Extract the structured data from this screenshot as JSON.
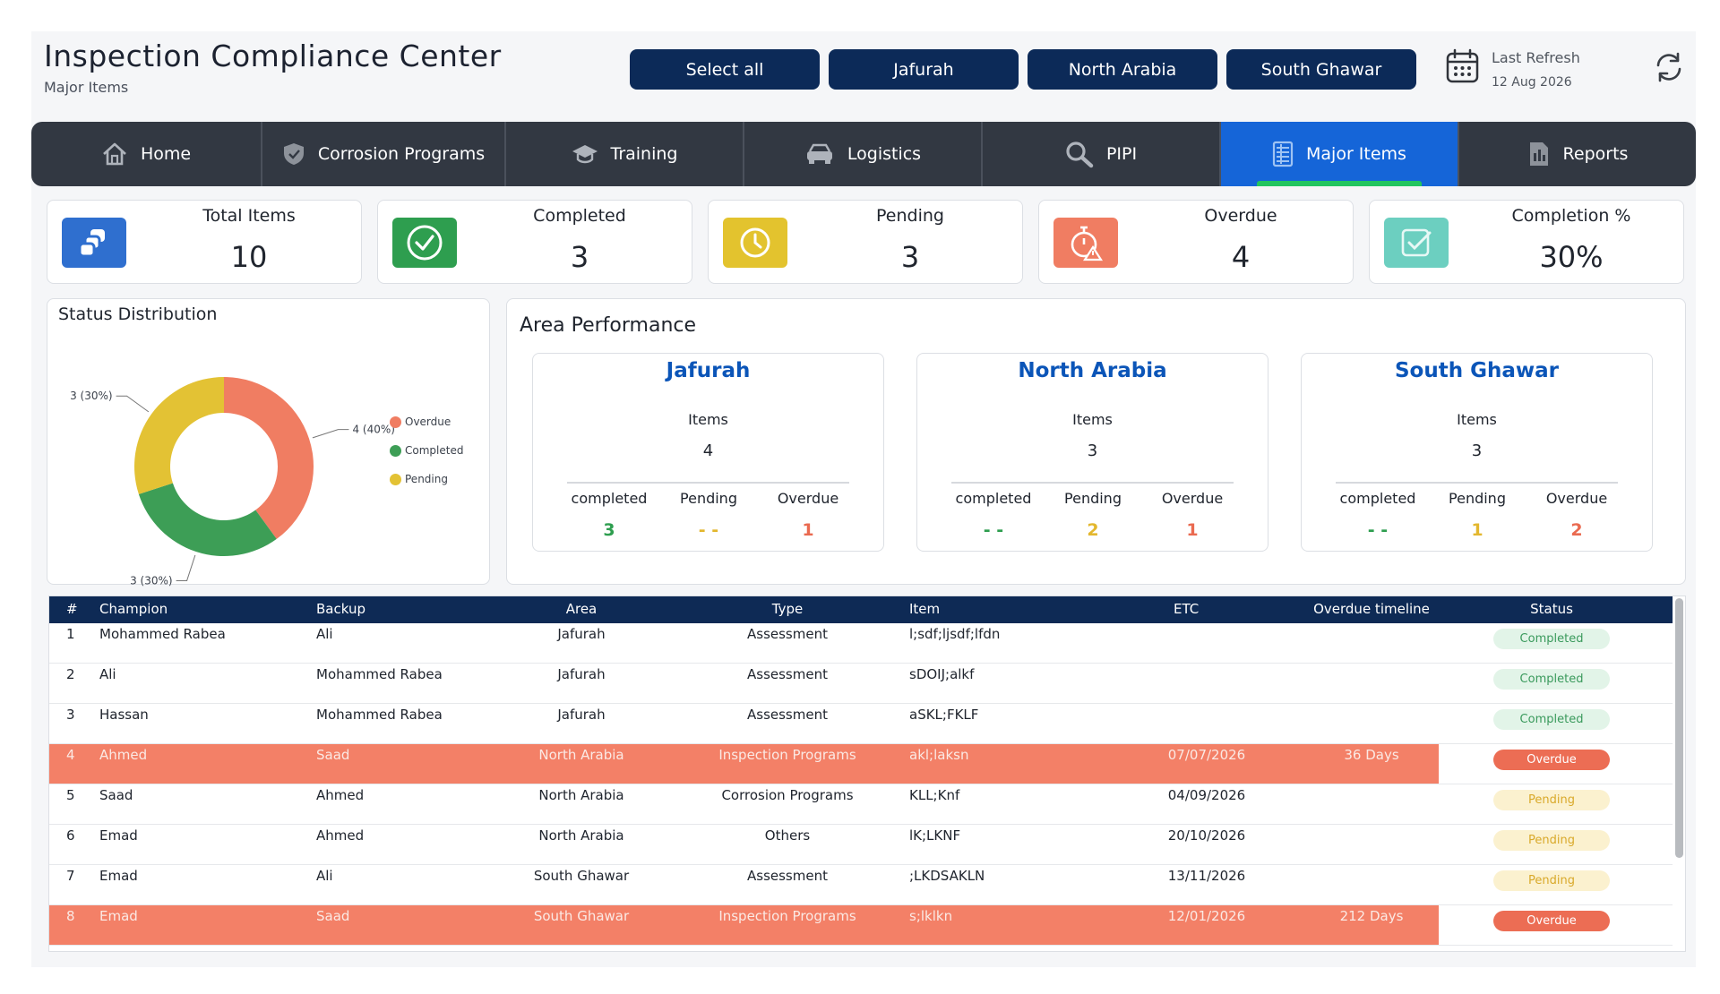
{
  "header": {
    "title": "Inspection Compliance Center",
    "subtitle": "Major Items",
    "filters": [
      "Select all",
      "Jafurah",
      "North Arabia",
      "South Ghawar"
    ],
    "last_refresh_label": "Last Refresh",
    "last_refresh_date": "12 Aug 2026"
  },
  "nav": {
    "tabs": [
      {
        "label": "Home",
        "icon": "home-icon"
      },
      {
        "label": "Corrosion Programs",
        "icon": "shield-icon"
      },
      {
        "label": "Training",
        "icon": "graduation-cap-icon"
      },
      {
        "label": "Logistics",
        "icon": "car-icon"
      },
      {
        "label": "PIPI",
        "icon": "search-icon"
      },
      {
        "label": "Major Items",
        "icon": "list-icon",
        "active": true
      },
      {
        "label": "Reports",
        "icon": "report-icon"
      }
    ]
  },
  "kpis": [
    {
      "label": "Total Items",
      "value": "10",
      "color": "#2f6fcf",
      "icon": "items-icon"
    },
    {
      "label": "Completed",
      "value": "3",
      "color": "#2e9e4f",
      "icon": "check-circle-icon"
    },
    {
      "label": "Pending",
      "value": "3",
      "color": "#e3c32e",
      "icon": "clock-icon"
    },
    {
      "label": "Overdue",
      "value": "4",
      "color": "#f07d62",
      "icon": "alarm-warning-icon"
    },
    {
      "label": "Completion %",
      "value": "30%",
      "color": "#6ccfc0",
      "icon": "checklist-icon"
    }
  ],
  "status_distribution": {
    "title": "Status Distribution",
    "labels": {
      "overdue": "4 (40%)",
      "completed": "3 (30%)",
      "pending": "3 (30%)"
    },
    "legend": [
      "Overdue",
      "Completed",
      "Pending"
    ]
  },
  "chart_data": {
    "type": "pie",
    "categories": [
      "Overdue",
      "Completed",
      "Pending"
    ],
    "values": [
      4,
      3,
      3
    ],
    "colors": [
      "#f07d62",
      "#3d9e56",
      "#e3c234"
    ]
  },
  "area_performance": {
    "title": "Area Performance",
    "items_label": "Items",
    "stat_labels": [
      "completed",
      "Pending",
      "Overdue"
    ],
    "areas": [
      {
        "name": "Jafurah",
        "items": "4",
        "completed": "3",
        "pending": "- -",
        "overdue": "1"
      },
      {
        "name": "North Arabia",
        "items": "3",
        "completed": "- -",
        "pending": "2",
        "overdue": "1"
      },
      {
        "name": "South Ghawar",
        "items": "3",
        "completed": "- -",
        "pending": "1",
        "overdue": "2"
      }
    ]
  },
  "table": {
    "columns": [
      "#",
      "Champion",
      "Backup",
      "Area",
      "Type",
      "Item",
      "ETC",
      "Overdue timeline",
      "Status"
    ],
    "rows": [
      {
        "n": "1",
        "champion": "Mohammed Rabea",
        "backup": "Ali",
        "area": "Jafurah",
        "type": "Assessment",
        "item": "l;sdf;ljsdf;lfdn",
        "etc": "",
        "timeline": "",
        "status": "Completed"
      },
      {
        "n": "2",
        "champion": "Ali",
        "backup": "Mohammed Rabea",
        "area": "Jafurah",
        "type": "Assessment",
        "item": "sDOIJ;alkf",
        "etc": "",
        "timeline": "",
        "status": "Completed"
      },
      {
        "n": "3",
        "champion": "Hassan",
        "backup": "Mohammed Rabea",
        "area": "Jafurah",
        "type": "Assessment",
        "item": "aSKL;FKLF",
        "etc": "",
        "timeline": "",
        "status": "Completed"
      },
      {
        "n": "4",
        "champion": "Ahmed",
        "backup": "Saad",
        "area": "North Arabia",
        "type": "Inspection Programs",
        "item": "akl;laksn",
        "etc": "07/07/2026",
        "timeline": "36 Days",
        "status": "Overdue"
      },
      {
        "n": "5",
        "champion": "Saad",
        "backup": "Ahmed",
        "area": "North Arabia",
        "type": "Corrosion Programs",
        "item": "KLL;Knf",
        "etc": "04/09/2026",
        "timeline": "",
        "status": "Pending"
      },
      {
        "n": "6",
        "champion": "Emad",
        "backup": "Ahmed",
        "area": "North Arabia",
        "type": "Others",
        "item": "lK;LKNF",
        "etc": "20/10/2026",
        "timeline": "",
        "status": "Pending"
      },
      {
        "n": "7",
        "champion": "Emad",
        "backup": "Ali",
        "area": "South Ghawar",
        "type": "Assessment",
        "item": ";LKDSAKLN",
        "etc": "13/11/2026",
        "timeline": "",
        "status": "Pending"
      },
      {
        "n": "8",
        "champion": "Emad",
        "backup": "Saad",
        "area": "South Ghawar",
        "type": "Inspection Programs",
        "item": "s;lklkn",
        "etc": "12/01/2026",
        "timeline": "212 Days",
        "status": "Overdue"
      }
    ]
  },
  "colors": {
    "navy": "#0c2a58",
    "nav_bg": "#323842",
    "active_tab": "#1565d8",
    "overdue": "#f38067",
    "completed": "#2e9e4f",
    "pending": "#e3b72e",
    "area_title": "#0b55b8"
  }
}
